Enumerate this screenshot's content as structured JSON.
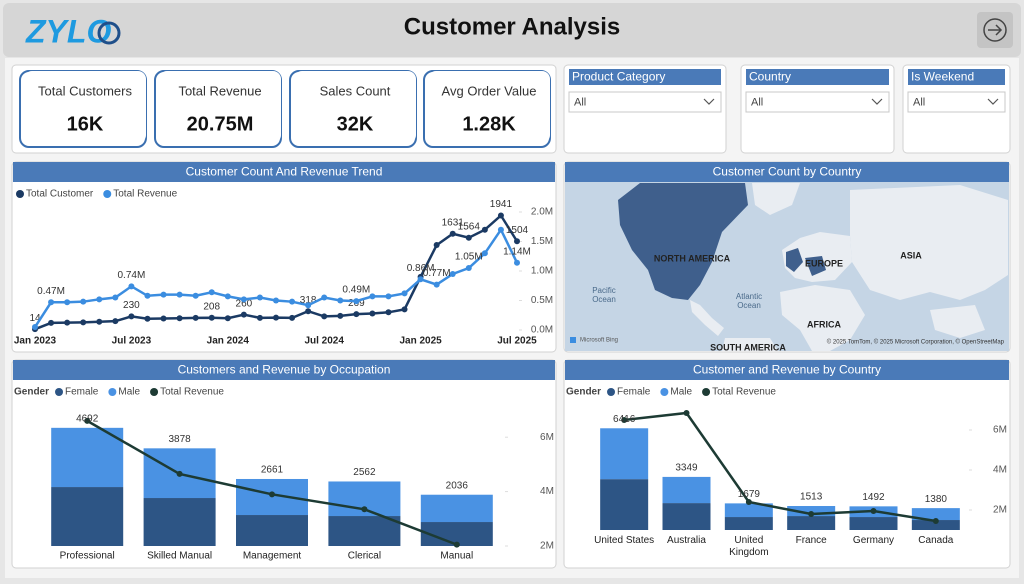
{
  "header": {
    "logo": "ZYLO",
    "title": "Customer Analysis"
  },
  "kpis": [
    {
      "label": "Total Customers",
      "value": "16K"
    },
    {
      "label": "Total Revenue",
      "value": "20.75M"
    },
    {
      "label": "Sales Count",
      "value": "32K"
    },
    {
      "label": "Avg Order Value",
      "value": "1.28K"
    }
  ],
  "filters": [
    {
      "label": "Product Category",
      "selection": "All"
    },
    {
      "label": "Country",
      "selection": "All"
    },
    {
      "label": "Is Weekend",
      "selection": "All"
    }
  ],
  "map": {
    "title": "Customer Count by Country",
    "labels": [
      "NORTH AMERICA",
      "EUROPE",
      "ASIA",
      "AFRICA",
      "SOUTH AMERICA",
      "Pacific Ocean",
      "Atlantic Ocean"
    ],
    "provider": "Microsoft Bing",
    "attribution": "© 2025 TomTom, © 2025 Microsoft Corporation, © OpenStreetMap"
  },
  "chart_data": [
    {
      "type": "line",
      "title": "Customer Count And Revenue Trend",
      "legend": "top-left",
      "categories": [
        "Jan 2023",
        null,
        null,
        null,
        null,
        null,
        "Jul 2023",
        null,
        null,
        null,
        null,
        null,
        "Jan 2024",
        null,
        null,
        null,
        null,
        null,
        "Jul 2024",
        null,
        null,
        null,
        null,
        null,
        "Jan 2025",
        null,
        null,
        null,
        null,
        null,
        "Jul 2025"
      ],
      "series": [
        {
          "name": "Total Customer",
          "color": "#1b3a63",
          "values": [
            14,
            120,
            125,
            130,
            140,
            150,
            230,
            190,
            195,
            200,
            205,
            208,
            200,
            260,
            205,
            210,
            205,
            318,
            230,
            240,
            269,
            280,
            300,
            350,
            900,
            1440,
            1631,
            1564,
            1700,
            1941,
            1504
          ],
          "value_labels": [
            "14",
            null,
            null,
            null,
            null,
            null,
            "230",
            null,
            null,
            null,
            null,
            "208",
            null,
            "260",
            null,
            null,
            null,
            "318",
            null,
            null,
            "269",
            null,
            null,
            null,
            null,
            null,
            "1631",
            "1564",
            null,
            "1941",
            "1504"
          ]
        },
        {
          "name": "Total Revenue",
          "color": "#3b8de0",
          "axis": "y2",
          "values": [
            0.05,
            0.47,
            0.47,
            0.48,
            0.52,
            0.55,
            0.74,
            0.58,
            0.6,
            0.6,
            0.58,
            0.64,
            0.57,
            0.52,
            0.55,
            0.5,
            0.48,
            0.42,
            0.55,
            0.5,
            0.49,
            0.57,
            0.57,
            0.62,
            0.86,
            0.77,
            0.95,
            1.05,
            1.3,
            1.7,
            1.14
          ],
          "value_labels": [
            null,
            "0.47M",
            null,
            null,
            null,
            null,
            "0.74M",
            null,
            null,
            null,
            null,
            null,
            null,
            null,
            null,
            null,
            null,
            null,
            null,
            null,
            "0.49M",
            null,
            null,
            null,
            "0.86M",
            "0.77M",
            null,
            "1.05M",
            null,
            null,
            "1.14M"
          ]
        }
      ],
      "ylim": [
        0,
        2000
      ],
      "y2lim": [
        0,
        2
      ],
      "y2ticks": [
        {
          "value": 0,
          "label": "0.0M"
        },
        {
          "value": 0.5,
          "label": "0.5M"
        },
        {
          "value": 1,
          "label": "1.0M"
        },
        {
          "value": 1.5,
          "label": "1.5M"
        },
        {
          "value": 2,
          "label": "2.0M"
        }
      ]
    },
    {
      "type": "bar",
      "stacked": true,
      "title": "Customers and Revenue by Occupation",
      "legend": "top-left",
      "legend_title": "Gender",
      "categories": [
        "Professional",
        "Skilled Manual",
        "Management",
        "Clerical",
        "Manual"
      ],
      "series": [
        {
          "name": "Female",
          "color": "#2d5585",
          "values": [
            2341,
            1905,
            1230,
            1190,
            952
          ]
        },
        {
          "name": "Male",
          "color": "#4a92e3",
          "values": [
            2351,
            1973,
            1431,
            1372,
            1084
          ]
        },
        {
          "name": "Total Revenue",
          "color": "#1d3b34",
          "type": "line",
          "axis": "y2",
          "values": [
            6.6,
            4.65,
            3.9,
            3.35,
            2.05
          ]
        }
      ],
      "totals": [
        4692,
        3878,
        2661,
        2562,
        2036
      ],
      "ylim": [
        0,
        5400
      ],
      "y2lim": [
        2,
        7
      ],
      "y2ticks": [
        {
          "value": 2,
          "label": "2M"
        },
        {
          "value": 4,
          "label": "4M"
        },
        {
          "value": 6,
          "label": "6M"
        }
      ]
    },
    {
      "type": "bar",
      "stacked": true,
      "title": "Customer and Revenue by Country",
      "legend": "top-left",
      "legend_title": "Gender",
      "categories": [
        "United States",
        "Australia",
        "United Kingdom",
        "France",
        "Germany",
        "Canada"
      ],
      "series": [
        {
          "name": "Female",
          "color": "#2d5585",
          "values": [
            3208,
            1698,
            818,
            880,
            818,
            629
          ]
        },
        {
          "name": "Male",
          "color": "#4a92e3",
          "values": [
            3208,
            1651,
            861,
            633,
            674,
            751
          ]
        },
        {
          "name": "Total Revenue",
          "color": "#1d3b34",
          "type": "line",
          "axis": "y2",
          "values": [
            6.5,
            6.85,
            2.4,
            1.8,
            1.95,
            1.45
          ]
        }
      ],
      "totals": [
        6416,
        3349,
        1679,
        1513,
        1492,
        1380
      ],
      "ylim": [
        0,
        8200
      ],
      "y2lim": [
        1,
        7.5
      ],
      "y2ticks": [
        {
          "value": 2,
          "label": "2M"
        },
        {
          "value": 4,
          "label": "4M"
        },
        {
          "value": 6,
          "label": "6M"
        }
      ]
    }
  ]
}
